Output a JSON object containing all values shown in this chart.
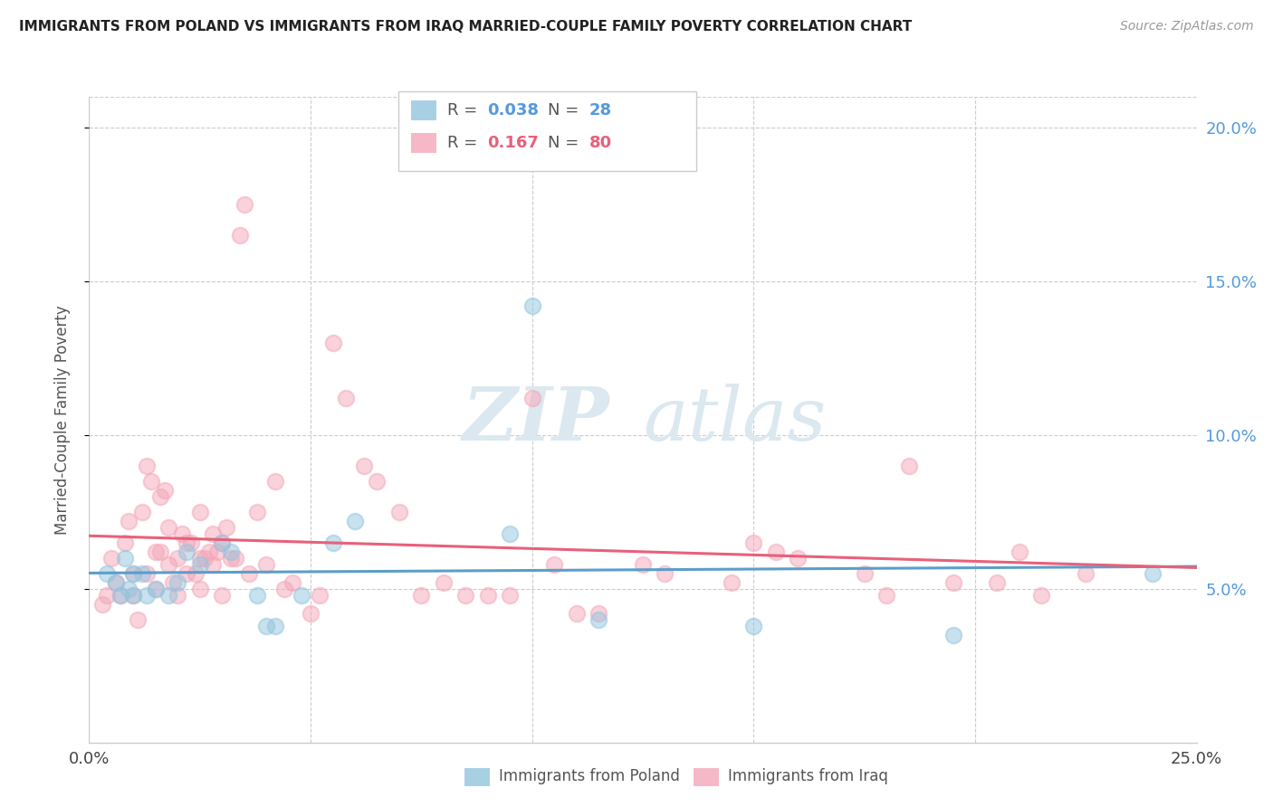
{
  "title": "IMMIGRANTS FROM POLAND VS IMMIGRANTS FROM IRAQ MARRIED-COUPLE FAMILY POVERTY CORRELATION CHART",
  "source": "Source: ZipAtlas.com",
  "ylabel": "Married-Couple Family Poverty",
  "xmin": 0.0,
  "xmax": 0.25,
  "ymin": 0.0,
  "ymax": 0.21,
  "yticks": [
    0.05,
    0.1,
    0.15,
    0.2
  ],
  "ytick_labels": [
    "5.0%",
    "10.0%",
    "15.0%",
    "20.0%"
  ],
  "xtick_labels": [
    "0.0%",
    "25.0%"
  ],
  "poland_color": "#92c5de",
  "iraq_color": "#f4a6b8",
  "poland_line_color": "#5b9ec9",
  "iraq_line_color": "#e8607a",
  "poland_R": 0.038,
  "poland_N": 28,
  "iraq_R": 0.167,
  "iraq_N": 80,
  "poland_scatter_x": [
    0.004,
    0.006,
    0.007,
    0.008,
    0.009,
    0.01,
    0.01,
    0.012,
    0.013,
    0.015,
    0.018,
    0.02,
    0.022,
    0.025,
    0.03,
    0.032,
    0.038,
    0.04,
    0.042,
    0.048,
    0.055,
    0.06,
    0.095,
    0.1,
    0.115,
    0.15,
    0.195,
    0.24
  ],
  "poland_scatter_y": [
    0.055,
    0.052,
    0.048,
    0.06,
    0.05,
    0.048,
    0.055,
    0.055,
    0.048,
    0.05,
    0.048,
    0.052,
    0.062,
    0.058,
    0.065,
    0.062,
    0.048,
    0.038,
    0.038,
    0.048,
    0.065,
    0.072,
    0.068,
    0.142,
    0.04,
    0.038,
    0.035,
    0.055
  ],
  "iraq_scatter_x": [
    0.003,
    0.004,
    0.005,
    0.006,
    0.007,
    0.008,
    0.009,
    0.01,
    0.01,
    0.011,
    0.012,
    0.013,
    0.013,
    0.014,
    0.015,
    0.015,
    0.016,
    0.016,
    0.017,
    0.018,
    0.018,
    0.019,
    0.02,
    0.02,
    0.021,
    0.022,
    0.022,
    0.023,
    0.024,
    0.025,
    0.025,
    0.025,
    0.026,
    0.027,
    0.028,
    0.028,
    0.029,
    0.03,
    0.03,
    0.031,
    0.032,
    0.033,
    0.034,
    0.035,
    0.036,
    0.038,
    0.04,
    0.042,
    0.044,
    0.046,
    0.05,
    0.052,
    0.055,
    0.058,
    0.062,
    0.065,
    0.07,
    0.075,
    0.08,
    0.085,
    0.09,
    0.095,
    0.1,
    0.105,
    0.11,
    0.115,
    0.125,
    0.13,
    0.145,
    0.15,
    0.155,
    0.16,
    0.175,
    0.18,
    0.185,
    0.195,
    0.205,
    0.21,
    0.215,
    0.225
  ],
  "iraq_scatter_y": [
    0.045,
    0.048,
    0.06,
    0.052,
    0.048,
    0.065,
    0.072,
    0.055,
    0.048,
    0.04,
    0.075,
    0.09,
    0.055,
    0.085,
    0.062,
    0.05,
    0.062,
    0.08,
    0.082,
    0.07,
    0.058,
    0.052,
    0.06,
    0.048,
    0.068,
    0.055,
    0.065,
    0.065,
    0.055,
    0.06,
    0.075,
    0.05,
    0.06,
    0.062,
    0.068,
    0.058,
    0.062,
    0.048,
    0.065,
    0.07,
    0.06,
    0.06,
    0.165,
    0.175,
    0.055,
    0.075,
    0.058,
    0.085,
    0.05,
    0.052,
    0.042,
    0.048,
    0.13,
    0.112,
    0.09,
    0.085,
    0.075,
    0.048,
    0.052,
    0.048,
    0.048,
    0.048,
    0.112,
    0.058,
    0.042,
    0.042,
    0.058,
    0.055,
    0.052,
    0.065,
    0.062,
    0.06,
    0.055,
    0.048,
    0.09,
    0.052,
    0.052,
    0.062,
    0.048,
    0.055
  ],
  "watermark_zip": "ZIP",
  "watermark_atlas": "atlas",
  "legend_poland_label": "Immigrants from Poland",
  "legend_iraq_label": "Immigrants from Iraq",
  "right_axis_color": "#5599dd",
  "background_color": "#ffffff"
}
